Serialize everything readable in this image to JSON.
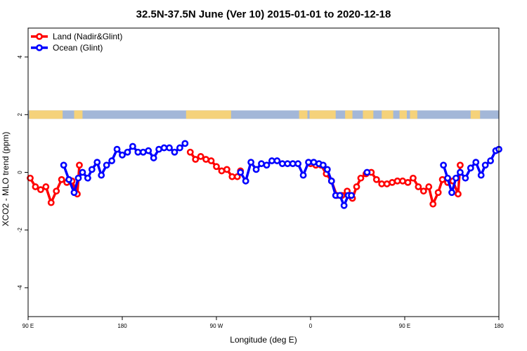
{
  "chart_data": {
    "type": "line",
    "title": "32.5N-37.5N June (Ver 10)   2015-01-01 to 2020-12-18",
    "xlabel": "Longitude (deg E)",
    "ylabel": "XCO2 - MLO trend (ppm)",
    "x_range_deg_unwrapped": [
      90,
      540
    ],
    "xlim": [
      90,
      540
    ],
    "ylim": [
      -5,
      5
    ],
    "x_ticks": [
      {
        "value": 90,
        "label": "90 E"
      },
      {
        "value": 180,
        "label": "180"
      },
      {
        "value": 270,
        "label": "90 W"
      },
      {
        "value": 360,
        "label": "0"
      },
      {
        "value": 450,
        "label": "90 E"
      },
      {
        "value": 540,
        "label": "180"
      }
    ],
    "y_ticks": [
      {
        "value": -4,
        "label": "-4"
      },
      {
        "value": -2,
        "label": "-2"
      },
      {
        "value": 0,
        "label": "0"
      },
      {
        "value": 2,
        "label": "2"
      },
      {
        "value": 4,
        "label": "4"
      }
    ],
    "grid": false,
    "legend_position": "top-left",
    "land_strip_y": 2,
    "land_strip_colors": {
      "ocean": "#a3b7d8",
      "land": "#f5d27a"
    },
    "land_segments": [
      [
        91,
        123
      ],
      [
        134,
        142
      ],
      [
        241,
        284
      ],
      [
        349,
        357
      ],
      [
        359,
        384
      ],
      [
        393,
        400
      ],
      [
        410,
        420
      ],
      [
        428,
        439
      ],
      [
        445,
        452
      ],
      [
        455,
        462
      ],
      [
        513,
        522
      ]
    ],
    "series": [
      {
        "name": "Land (Nadir&Glint)",
        "color": "#ff0000",
        "segments": [
          [
            [
              92,
              -0.2
            ],
            [
              97,
              -0.5
            ],
            [
              102,
              -0.6
            ],
            [
              107,
              -0.5
            ],
            [
              112,
              -1.05
            ],
            [
              117,
              -0.65
            ],
            [
              122,
              -0.25
            ],
            [
              127,
              -0.35
            ],
            [
              132,
              -0.3
            ],
            [
              137,
              -0.75
            ],
            [
              139,
              0.25
            ]
          ],
          [
            [
              245,
              0.7
            ],
            [
              250,
              0.45
            ],
            [
              255,
              0.55
            ],
            [
              260,
              0.45
            ],
            [
              265,
              0.4
            ],
            [
              270,
              0.2
            ],
            [
              275,
              0.05
            ],
            [
              280,
              0.1
            ],
            [
              285,
              -0.15
            ],
            [
              290,
              -0.15
            ],
            [
              293,
              0.05
            ]
          ],
          [
            [
              360,
              0.3
            ],
            [
              365,
              0.25
            ],
            [
              370,
              0.25
            ],
            [
              375,
              -0.05
            ],
            [
              380,
              -0.3
            ],
            [
              385,
              -0.8
            ],
            [
              390,
              -0.8
            ],
            [
              395,
              -0.65
            ],
            [
              400,
              -0.9
            ],
            [
              404,
              -0.5
            ],
            [
              408,
              -0.2
            ],
            [
              413,
              -0.05
            ],
            [
              418,
              0.0
            ],
            [
              423,
              -0.25
            ],
            [
              428,
              -0.4
            ],
            [
              433,
              -0.4
            ],
            [
              438,
              -0.35
            ],
            [
              443,
              -0.3
            ],
            [
              448,
              -0.3
            ],
            [
              453,
              -0.35
            ],
            [
              458,
              -0.2
            ],
            [
              463,
              -0.5
            ],
            [
              468,
              -0.65
            ],
            [
              473,
              -0.5
            ],
            [
              477,
              -1.1
            ],
            [
              482,
              -0.7
            ],
            [
              486,
              -0.25
            ],
            [
              491,
              -0.35
            ],
            [
              496,
              -0.3
            ],
            [
              501,
              -0.75
            ],
            [
              503,
              0.25
            ]
          ]
        ]
      },
      {
        "name": "Ocean (Glint)",
        "color": "#0000ff",
        "segments": [
          [
            [
              124,
              0.25
            ],
            [
              129,
              -0.25
            ],
            [
              134,
              -0.7
            ],
            [
              138,
              -0.2
            ],
            [
              142,
              0.0
            ],
            [
              147,
              -0.2
            ],
            [
              151,
              0.1
            ],
            [
              156,
              0.35
            ],
            [
              160,
              -0.1
            ],
            [
              165,
              0.25
            ],
            [
              170,
              0.4
            ],
            [
              175,
              0.8
            ],
            [
              180,
              0.6
            ],
            [
              185,
              0.7
            ],
            [
              190,
              0.9
            ],
            [
              195,
              0.7
            ],
            [
              200,
              0.7
            ],
            [
              205,
              0.75
            ],
            [
              210,
              0.5
            ],
            [
              215,
              0.8
            ],
            [
              220,
              0.85
            ],
            [
              225,
              0.85
            ],
            [
              230,
              0.7
            ],
            [
              235,
              0.85
            ],
            [
              240,
              1.0
            ]
          ],
          [
            [
              293,
              0.0
            ],
            [
              298,
              -0.3
            ],
            [
              303,
              0.35
            ],
            [
              308,
              0.1
            ],
            [
              313,
              0.3
            ],
            [
              318,
              0.25
            ],
            [
              323,
              0.4
            ],
            [
              328,
              0.4
            ],
            [
              333,
              0.3
            ],
            [
              338,
              0.3
            ],
            [
              343,
              0.3
            ],
            [
              348,
              0.3
            ],
            [
              353,
              -0.1
            ],
            [
              358,
              0.35
            ],
            [
              363,
              0.35
            ],
            [
              368,
              0.3
            ],
            [
              372,
              0.25
            ],
            [
              376,
              0.1
            ],
            [
              380,
              -0.3
            ],
            [
              384,
              -0.8
            ],
            [
              388,
              -0.8
            ],
            [
              392,
              -1.15
            ],
            [
              396,
              -0.8
            ],
            [
              399,
              -0.8
            ]
          ],
          [
            [
              414,
              0.0
            ]
          ],
          [
            [
              487,
              0.25
            ],
            [
              491,
              -0.2
            ],
            [
              495,
              -0.7
            ],
            [
              499,
              -0.2
            ],
            [
              503,
              0.0
            ],
            [
              508,
              -0.2
            ],
            [
              513,
              0.15
            ],
            [
              518,
              0.35
            ],
            [
              523,
              -0.1
            ],
            [
              527,
              0.25
            ],
            [
              532,
              0.4
            ],
            [
              537,
              0.75
            ],
            [
              540,
              0.8
            ]
          ]
        ]
      }
    ]
  }
}
